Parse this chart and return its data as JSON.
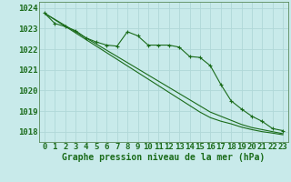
{
  "bg_color": "#c8eaea",
  "plot_bg_color": "#c8eaea",
  "grid_color": "#b0d8d8",
  "line_color": "#1a6b1a",
  "marker_color": "#1a6b1a",
  "title": "Graphe pression niveau de la mer (hPa)",
  "title_color": "#1a6b1a",
  "ylim": [
    1017.5,
    1024.3
  ],
  "xlim": [
    -0.5,
    23.5
  ],
  "yticks": [
    1018,
    1019,
    1020,
    1021,
    1022,
    1023,
    1024
  ],
  "xticks": [
    0,
    1,
    2,
    3,
    4,
    5,
    6,
    7,
    8,
    9,
    10,
    11,
    12,
    13,
    14,
    15,
    16,
    17,
    18,
    19,
    20,
    21,
    22,
    23
  ],
  "series_smooth1": [
    1023.75,
    1023.45,
    1023.15,
    1022.85,
    1022.55,
    1022.25,
    1021.95,
    1021.65,
    1021.35,
    1021.05,
    1020.75,
    1020.45,
    1020.15,
    1019.85,
    1019.55,
    1019.25,
    1018.95,
    1018.75,
    1018.55,
    1018.35,
    1018.2,
    1018.1,
    1018.0,
    1017.9
  ],
  "series_smooth2": [
    1023.75,
    1023.43,
    1023.11,
    1022.79,
    1022.47,
    1022.15,
    1021.83,
    1021.51,
    1021.19,
    1020.87,
    1020.55,
    1020.23,
    1019.91,
    1019.59,
    1019.27,
    1018.95,
    1018.68,
    1018.51,
    1018.38,
    1018.22,
    1018.1,
    1018.0,
    1017.93,
    1017.85
  ],
  "series_marker": [
    1023.75,
    1023.25,
    1023.1,
    1022.9,
    1022.55,
    1022.35,
    1022.2,
    1022.15,
    1022.85,
    1022.65,
    1022.2,
    1022.2,
    1022.2,
    1022.1,
    1021.65,
    1021.6,
    1021.2,
    1020.3,
    1019.5,
    1019.1,
    1018.75,
    1018.5,
    1018.15,
    1018.05
  ],
  "fontsize_title": 7,
  "fontsize_tick": 6.5,
  "tick_color": "#1a6b1a",
  "spine_color": "#5a8a5a"
}
